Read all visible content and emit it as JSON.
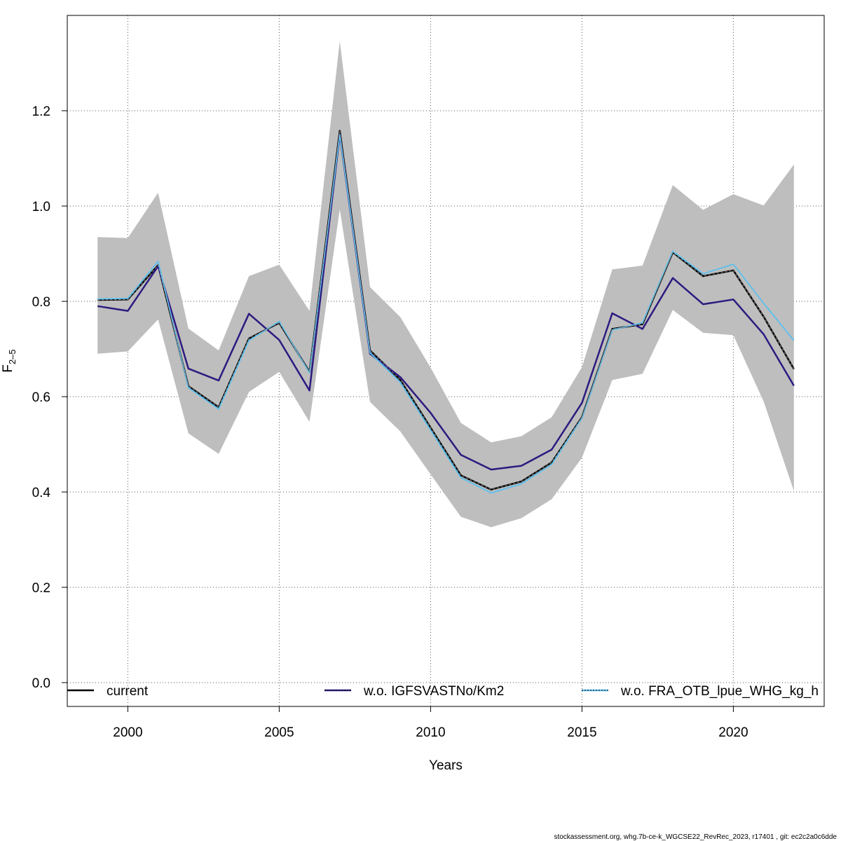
{
  "chart_data": {
    "type": "line",
    "xlabel": "Years",
    "ylabel_main": "F",
    "ylabel_sub": "2–5",
    "xlim": [
      1998,
      2023
    ],
    "ylim": [
      -0.05,
      1.4
    ],
    "xticks": [
      2000,
      2005,
      2010,
      2015,
      2020
    ],
    "yticks": [
      0.0,
      0.2,
      0.4,
      0.6,
      0.8,
      1.0,
      1.2
    ],
    "xtick_labels": [
      "2000",
      "2005",
      "2010",
      "2015",
      "2020"
    ],
    "ytick_labels": [
      "0.0",
      "0.2",
      "0.4",
      "0.6",
      "0.8",
      "1.0",
      "1.2"
    ],
    "grid": true,
    "x": [
      1999,
      2000,
      2001,
      2002,
      2003,
      2004,
      2005,
      2006,
      2007,
      2008,
      2009,
      2010,
      2011,
      2012,
      2013,
      2014,
      2015,
      2016,
      2017,
      2018,
      2019,
      2020,
      2021,
      2022
    ],
    "band": {
      "lower": [
        0.69,
        0.695,
        0.762,
        0.523,
        0.48,
        0.61,
        0.652,
        0.547,
        0.993,
        0.589,
        0.527,
        0.437,
        0.348,
        0.326,
        0.345,
        0.385,
        0.472,
        0.635,
        0.648,
        0.782,
        0.734,
        0.729,
        0.59,
        0.402
      ],
      "upper": [
        0.935,
        0.933,
        1.028,
        0.743,
        0.697,
        0.853,
        0.877,
        0.78,
        1.346,
        0.83,
        0.767,
        0.661,
        0.545,
        0.504,
        0.517,
        0.557,
        0.662,
        0.867,
        0.875,
        1.044,
        0.992,
        1.025,
        1.001,
        1.087
      ],
      "color": "#bebebe"
    },
    "series": [
      {
        "name": "current",
        "color": "#000000",
        "style": "solid",
        "values": [
          0.803,
          0.804,
          0.876,
          0.622,
          0.578,
          0.722,
          0.755,
          0.652,
          1.158,
          0.697,
          0.635,
          0.535,
          0.435,
          0.405,
          0.422,
          0.462,
          0.557,
          0.742,
          0.752,
          0.903,
          0.853,
          0.865,
          0.768,
          0.658
        ]
      },
      {
        "name": "w.o. IGFSVASTNo/Km2",
        "color": "#2e1a80",
        "style": "solid",
        "values": [
          0.79,
          0.78,
          0.874,
          0.659,
          0.634,
          0.774,
          0.719,
          0.613,
          1.15,
          0.69,
          0.641,
          0.566,
          0.478,
          0.447,
          0.455,
          0.489,
          0.587,
          0.775,
          0.742,
          0.849,
          0.794,
          0.804,
          0.731,
          0.623
        ]
      },
      {
        "name": "w.o. FRA_OTB_lpue_WHG_kg_h",
        "color": "#5cc0ee",
        "style": "solid",
        "values": [
          0.805,
          0.806,
          0.884,
          0.619,
          0.574,
          0.718,
          0.758,
          0.65,
          1.15,
          0.692,
          0.63,
          0.53,
          0.43,
          0.398,
          0.417,
          0.458,
          0.555,
          0.74,
          0.755,
          0.905,
          0.858,
          0.878,
          0.796,
          0.718
        ]
      }
    ],
    "legend_placement": "bottom",
    "legend_labels": [
      "current",
      "w.o. IGFSVASTNo/Km2",
      "w.o. FRA_OTB_lpue_WHG_kg_h"
    ]
  },
  "footer": "stockassessment.org, whg.7b-ce-k_WGCSE22_RevRec_2023, r17401 , git: ec2c2a0c6dde"
}
